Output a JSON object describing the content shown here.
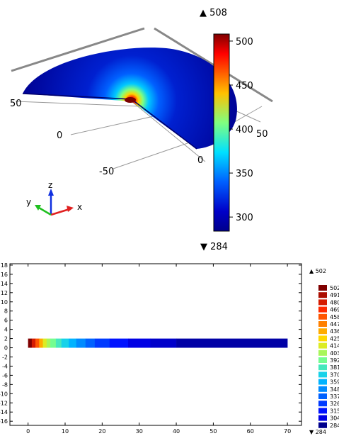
{
  "top_view": {
    "max_label": "▲ 508",
    "min_label": "▼ 284",
    "colorbar_ticks": [
      "500",
      "450",
      "400",
      "350",
      "300"
    ],
    "colorbar_tick_values": [
      500,
      450,
      400,
      350,
      300
    ],
    "colorbar_range": [
      284,
      508
    ],
    "axis_labels": {
      "left_50": "50",
      "center_0": "0",
      "neg_50": "-50",
      "right_0": "0",
      "right_50": "50"
    },
    "triad": {
      "x": "x",
      "y": "y",
      "z": "z"
    }
  },
  "chart_data": [
    {
      "type": "heatmap",
      "title": "",
      "surface": "3D quarter-disc temperature surface with hotspot at the center",
      "color_range": [
        284,
        508
      ],
      "colorbar_ticks": [
        500,
        450,
        400,
        350,
        300
      ],
      "max": 508,
      "min": 284
    },
    {
      "type": "heatmap",
      "title": "",
      "xlim": [
        0,
        70
      ],
      "ylim": [
        -16,
        18
      ],
      "x_ticks": [
        "0",
        "10",
        "20",
        "30",
        "40",
        "50",
        "60",
        "70"
      ],
      "y_ticks": [
        "18",
        "16",
        "14",
        "12",
        "10",
        "8",
        "6",
        "4",
        "2",
        "0",
        "-2",
        "-4",
        "-6",
        "-8",
        "-10",
        "-12",
        "-14",
        "-16"
      ],
      "strip": {
        "x_start": 0,
        "x_end": 70,
        "y_min": 0,
        "y_max": 2
      },
      "max": 502,
      "min": 284,
      "max_label": "▲ 502",
      "min_label": "▼ 284",
      "legend_levels": [
        "502",
        "491",
        "480",
        "469",
        "458",
        "447",
        "436",
        "425",
        "414",
        "403",
        "392",
        "381",
        "370",
        "359",
        "348",
        "337",
        "326",
        "315",
        "304",
        "284"
      ],
      "segments": [
        {
          "x0": 0,
          "x1": 1,
          "value": 502
        },
        {
          "x0": 1,
          "x1": 2,
          "value": 480
        },
        {
          "x0": 2,
          "x1": 3,
          "value": 458
        },
        {
          "x0": 3,
          "x1": 4,
          "value": 436
        },
        {
          "x0": 4,
          "x1": 5,
          "value": 414
        },
        {
          "x0": 5,
          "x1": 6,
          "value": 403
        },
        {
          "x0": 6,
          "x1": 7.5,
          "value": 392
        },
        {
          "x0": 7.5,
          "x1": 9,
          "value": 381
        },
        {
          "x0": 9,
          "x1": 11,
          "value": 370
        },
        {
          "x0": 11,
          "x1": 13,
          "value": 359
        },
        {
          "x0": 13,
          "x1": 15.5,
          "value": 348
        },
        {
          "x0": 15.5,
          "x1": 18,
          "value": 337
        },
        {
          "x0": 18,
          "x1": 22,
          "value": 326
        },
        {
          "x0": 22,
          "x1": 27,
          "value": 315
        },
        {
          "x0": 27,
          "x1": 33,
          "value": 304
        },
        {
          "x0": 33,
          "x1": 40,
          "value": 298
        },
        {
          "x0": 40,
          "x1": 70,
          "value": 290
        }
      ]
    }
  ]
}
